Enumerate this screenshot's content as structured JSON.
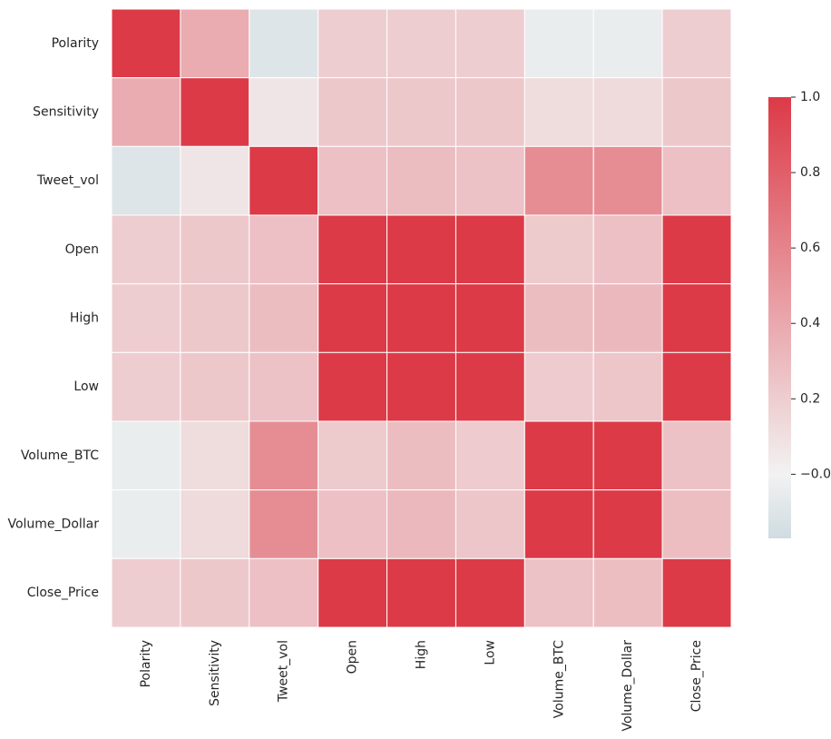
{
  "chart_data": {
    "type": "heatmap",
    "labels": [
      "Polarity",
      "Sensitivity",
      "Tweet_vol",
      "Open",
      "High",
      "Low",
      "Volume_BTC",
      "Volume_Dollar",
      "Close_Price"
    ],
    "matrix": [
      [
        1.0,
        0.38,
        -0.1,
        0.2,
        0.2,
        0.2,
        -0.04,
        -0.04,
        0.2
      ],
      [
        0.38,
        1.0,
        0.07,
        0.23,
        0.23,
        0.23,
        0.12,
        0.13,
        0.23
      ],
      [
        -0.1,
        0.07,
        1.0,
        0.27,
        0.29,
        0.26,
        0.55,
        0.55,
        0.27
      ],
      [
        0.2,
        0.23,
        0.27,
        1.0,
        1.0,
        1.0,
        0.22,
        0.27,
        1.0
      ],
      [
        0.2,
        0.23,
        0.29,
        1.0,
        1.0,
        1.0,
        0.29,
        0.31,
        1.0
      ],
      [
        0.2,
        0.23,
        0.26,
        1.0,
        1.0,
        1.0,
        0.21,
        0.24,
        1.0
      ],
      [
        -0.04,
        0.12,
        0.55,
        0.22,
        0.29,
        0.21,
        1.0,
        1.0,
        0.26
      ],
      [
        -0.04,
        0.13,
        0.55,
        0.27,
        0.31,
        0.24,
        1.0,
        1.0,
        0.28
      ],
      [
        0.2,
        0.23,
        0.27,
        1.0,
        1.0,
        1.0,
        0.26,
        0.28,
        1.0
      ]
    ],
    "colorbar": {
      "min": -0.17,
      "max": 1.0,
      "ticks": [
        -0.0,
        0.2,
        0.4,
        0.6,
        0.8,
        1.0
      ],
      "tick_labels": [
        "−0.0",
        "0.2",
        "0.4",
        "0.6",
        "0.8",
        "1.0"
      ]
    },
    "colormap": {
      "low": "#cfdce1",
      "mid": "#f2f2f2",
      "high": "#dc3a47"
    },
    "grid": true
  }
}
